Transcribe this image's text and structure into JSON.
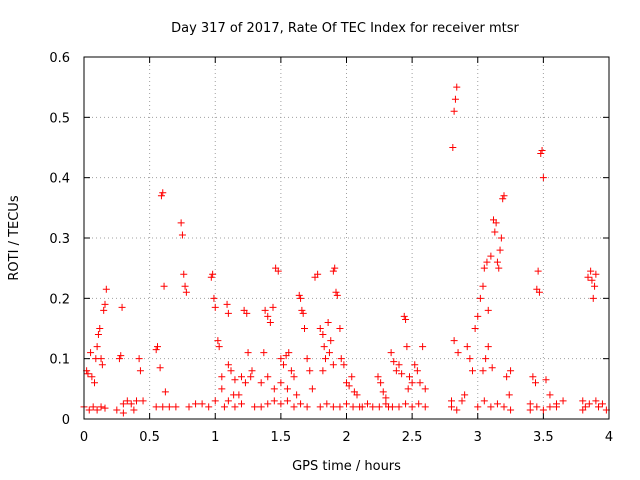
{
  "chart_data": {
    "type": "scatter",
    "title": "Day 317 of 2017, Rate Of TEC Index for receiver mtsr",
    "xlabel": "GPS time / hours",
    "ylabel": "ROTI / TECUs",
    "xlim": [
      0,
      4
    ],
    "ylim": [
      0,
      0.6
    ],
    "xticks": [
      0,
      0.5,
      1,
      1.5,
      2,
      2.5,
      3,
      3.5,
      4
    ],
    "xtick_labels": [
      "0",
      "0.5",
      "1",
      "1.5",
      "2",
      "2.5",
      "3",
      "3.5",
      "4"
    ],
    "yticks": [
      0,
      0.1,
      0.2,
      0.3,
      0.4,
      0.5,
      0.6
    ],
    "ytick_labels": [
      "0",
      "0.1",
      "0.2",
      "0.3",
      "0.4",
      "0.5",
      "0.6"
    ],
    "grid": true,
    "marker": "+",
    "color": "#ff0000",
    "series": [
      {
        "points": [
          [
            0.0,
            0.02
          ],
          [
            0.02,
            0.08
          ],
          [
            0.03,
            0.075
          ],
          [
            0.05,
            0.11
          ],
          [
            0.06,
            0.07
          ],
          [
            0.08,
            0.06
          ],
          [
            0.09,
            0.1
          ],
          [
            0.1,
            0.12
          ],
          [
            0.11,
            0.14
          ],
          [
            0.12,
            0.15
          ],
          [
            0.13,
            0.1
          ],
          [
            0.14,
            0.09
          ],
          [
            0.15,
            0.18
          ],
          [
            0.16,
            0.19
          ],
          [
            0.17,
            0.215
          ],
          [
            0.04,
            0.015
          ],
          [
            0.07,
            0.02
          ],
          [
            0.1,
            0.015
          ],
          [
            0.13,
            0.02
          ],
          [
            0.16,
            0.018
          ],
          [
            0.27,
            0.1
          ],
          [
            0.28,
            0.105
          ],
          [
            0.29,
            0.185
          ],
          [
            0.3,
            0.025
          ],
          [
            0.33,
            0.03
          ],
          [
            0.36,
            0.025
          ],
          [
            0.4,
            0.03
          ],
          [
            0.42,
            0.1
          ],
          [
            0.43,
            0.08
          ],
          [
            0.25,
            0.015
          ],
          [
            0.3,
            0.01
          ],
          [
            0.38,
            0.015
          ],
          [
            0.45,
            0.03
          ],
          [
            0.55,
            0.115
          ],
          [
            0.56,
            0.12
          ],
          [
            0.58,
            0.085
          ],
          [
            0.59,
            0.37
          ],
          [
            0.6,
            0.375
          ],
          [
            0.61,
            0.22
          ],
          [
            0.62,
            0.045
          ],
          [
            0.55,
            0.02
          ],
          [
            0.6,
            0.02
          ],
          [
            0.65,
            0.02
          ],
          [
            0.7,
            0.02
          ],
          [
            0.74,
            0.325
          ],
          [
            0.75,
            0.305
          ],
          [
            0.76,
            0.24
          ],
          [
            0.77,
            0.22
          ],
          [
            0.78,
            0.21
          ],
          [
            0.8,
            0.02
          ],
          [
            0.85,
            0.025
          ],
          [
            0.9,
            0.025
          ],
          [
            0.95,
            0.02
          ],
          [
            0.97,
            0.235
          ],
          [
            0.98,
            0.24
          ],
          [
            0.99,
            0.2
          ],
          [
            1.0,
            0.185
          ],
          [
            1.02,
            0.13
          ],
          [
            1.03,
            0.12
          ],
          [
            1.05,
            0.05
          ],
          [
            1.07,
            0.02
          ],
          [
            1.09,
            0.19
          ],
          [
            1.1,
            0.175
          ],
          [
            1.12,
            0.08
          ],
          [
            1.15,
            0.065
          ],
          [
            1.18,
            0.04
          ],
          [
            1.2,
            0.025
          ],
          [
            1.22,
            0.18
          ],
          [
            1.24,
            0.175
          ],
          [
            1.25,
            0.11
          ],
          [
            1.27,
            0.07
          ],
          [
            1.28,
            0.08
          ],
          [
            1.3,
            0.02
          ],
          [
            1.05,
            0.07
          ],
          [
            1.1,
            0.09
          ],
          [
            1.14,
            0.04
          ],
          [
            1.2,
            0.07
          ],
          [
            1.23,
            0.06
          ],
          [
            1.0,
            0.03
          ],
          [
            1.1,
            0.03
          ],
          [
            1.15,
            0.02
          ],
          [
            1.35,
            0.06
          ],
          [
            1.37,
            0.11
          ],
          [
            1.38,
            0.18
          ],
          [
            1.4,
            0.17
          ],
          [
            1.42,
            0.16
          ],
          [
            1.44,
            0.185
          ],
          [
            1.46,
            0.25
          ],
          [
            1.48,
            0.245
          ],
          [
            1.5,
            0.1
          ],
          [
            1.52,
            0.09
          ],
          [
            1.54,
            0.105
          ],
          [
            1.56,
            0.11
          ],
          [
            1.58,
            0.08
          ],
          [
            1.6,
            0.07
          ],
          [
            1.62,
            0.04
          ],
          [
            1.64,
            0.205
          ],
          [
            1.65,
            0.2
          ],
          [
            1.66,
            0.18
          ],
          [
            1.67,
            0.175
          ],
          [
            1.68,
            0.15
          ],
          [
            1.7,
            0.1
          ],
          [
            1.72,
            0.08
          ],
          [
            1.74,
            0.05
          ],
          [
            1.35,
            0.02
          ],
          [
            1.4,
            0.025
          ],
          [
            1.45,
            0.03
          ],
          [
            1.5,
            0.025
          ],
          [
            1.55,
            0.03
          ],
          [
            1.6,
            0.02
          ],
          [
            1.65,
            0.025
          ],
          [
            1.7,
            0.02
          ],
          [
            1.4,
            0.07
          ],
          [
            1.45,
            0.05
          ],
          [
            1.5,
            0.06
          ],
          [
            1.55,
            0.05
          ],
          [
            1.76,
            0.235
          ],
          [
            1.78,
            0.24
          ],
          [
            1.8,
            0.15
          ],
          [
            1.82,
            0.14
          ],
          [
            1.83,
            0.12
          ],
          [
            1.84,
            0.1
          ],
          [
            1.86,
            0.16
          ],
          [
            1.88,
            0.13
          ],
          [
            1.9,
            0.245
          ],
          [
            1.91,
            0.25
          ],
          [
            1.92,
            0.21
          ],
          [
            1.93,
            0.205
          ],
          [
            1.95,
            0.15
          ],
          [
            1.96,
            0.1
          ],
          [
            1.98,
            0.09
          ],
          [
            2.0,
            0.06
          ],
          [
            2.02,
            0.055
          ],
          [
            2.04,
            0.07
          ],
          [
            2.06,
            0.045
          ],
          [
            2.08,
            0.04
          ],
          [
            1.8,
            0.02
          ],
          [
            1.85,
            0.025
          ],
          [
            1.9,
            0.02
          ],
          [
            1.95,
            0.02
          ],
          [
            2.0,
            0.025
          ],
          [
            2.05,
            0.02
          ],
          [
            2.1,
            0.02
          ],
          [
            1.82,
            0.08
          ],
          [
            1.87,
            0.11
          ],
          [
            1.9,
            0.09
          ],
          [
            2.12,
            0.02
          ],
          [
            2.16,
            0.025
          ],
          [
            2.2,
            0.02
          ],
          [
            2.24,
            0.07
          ],
          [
            2.26,
            0.06
          ],
          [
            2.28,
            0.045
          ],
          [
            2.3,
            0.035
          ],
          [
            2.32,
            0.02
          ],
          [
            2.34,
            0.11
          ],
          [
            2.36,
            0.095
          ],
          [
            2.38,
            0.08
          ],
          [
            2.4,
            0.09
          ],
          [
            2.42,
            0.075
          ],
          [
            2.44,
            0.17
          ],
          [
            2.45,
            0.165
          ],
          [
            2.46,
            0.12
          ],
          [
            2.47,
            0.05
          ],
          [
            2.48,
            0.07
          ],
          [
            2.5,
            0.06
          ],
          [
            2.52,
            0.09
          ],
          [
            2.54,
            0.08
          ],
          [
            2.56,
            0.06
          ],
          [
            2.58,
            0.12
          ],
          [
            2.6,
            0.05
          ],
          [
            2.25,
            0.02
          ],
          [
            2.3,
            0.025
          ],
          [
            2.35,
            0.02
          ],
          [
            2.4,
            0.02
          ],
          [
            2.45,
            0.025
          ],
          [
            2.5,
            0.02
          ],
          [
            2.55,
            0.025
          ],
          [
            2.6,
            0.02
          ],
          [
            2.8,
            0.03
          ],
          [
            2.81,
            0.45
          ],
          [
            2.82,
            0.51
          ],
          [
            2.83,
            0.53
          ],
          [
            2.84,
            0.55
          ],
          [
            2.82,
            0.13
          ],
          [
            2.85,
            0.11
          ],
          [
            2.8,
            0.02
          ],
          [
            2.84,
            0.015
          ],
          [
            2.88,
            0.03
          ],
          [
            2.9,
            0.04
          ],
          [
            2.92,
            0.12
          ],
          [
            2.94,
            0.1
          ],
          [
            2.96,
            0.08
          ],
          [
            2.98,
            0.15
          ],
          [
            3.0,
            0.17
          ],
          [
            3.02,
            0.2
          ],
          [
            3.04,
            0.22
          ],
          [
            3.05,
            0.25
          ],
          [
            3.07,
            0.26
          ],
          [
            3.08,
            0.18
          ],
          [
            3.1,
            0.27
          ],
          [
            3.12,
            0.33
          ],
          [
            3.13,
            0.31
          ],
          [
            3.14,
            0.325
          ],
          [
            3.15,
            0.26
          ],
          [
            3.16,
            0.25
          ],
          [
            3.17,
            0.28
          ],
          [
            3.18,
            0.3
          ],
          [
            3.19,
            0.365
          ],
          [
            3.2,
            0.37
          ],
          [
            3.22,
            0.07
          ],
          [
            3.24,
            0.04
          ],
          [
            3.25,
            0.08
          ],
          [
            3.0,
            0.02
          ],
          [
            3.05,
            0.03
          ],
          [
            3.1,
            0.02
          ],
          [
            3.15,
            0.025
          ],
          [
            3.2,
            0.02
          ],
          [
            3.25,
            0.015
          ],
          [
            3.04,
            0.08
          ],
          [
            3.06,
            0.1
          ],
          [
            3.08,
            0.12
          ],
          [
            3.11,
            0.085
          ],
          [
            3.4,
            0.025
          ],
          [
            3.42,
            0.07
          ],
          [
            3.44,
            0.06
          ],
          [
            3.45,
            0.215
          ],
          [
            3.46,
            0.245
          ],
          [
            3.47,
            0.21
          ],
          [
            3.48,
            0.44
          ],
          [
            3.49,
            0.445
          ],
          [
            3.5,
            0.4
          ],
          [
            3.52,
            0.065
          ],
          [
            3.55,
            0.04
          ],
          [
            3.6,
            0.025
          ],
          [
            3.65,
            0.03
          ],
          [
            3.4,
            0.015
          ],
          [
            3.45,
            0.02
          ],
          [
            3.5,
            0.015
          ],
          [
            3.55,
            0.02
          ],
          [
            3.6,
            0.02
          ],
          [
            3.8,
            0.015
          ],
          [
            3.82,
            0.02
          ],
          [
            3.84,
            0.235
          ],
          [
            3.86,
            0.245
          ],
          [
            3.87,
            0.23
          ],
          [
            3.88,
            0.2
          ],
          [
            3.89,
            0.22
          ],
          [
            3.9,
            0.24
          ],
          [
            3.92,
            0.02
          ],
          [
            3.95,
            0.025
          ],
          [
            3.98,
            0.015
          ],
          [
            3.8,
            0.03
          ],
          [
            3.85,
            0.025
          ],
          [
            3.9,
            0.03
          ]
        ]
      }
    ]
  }
}
